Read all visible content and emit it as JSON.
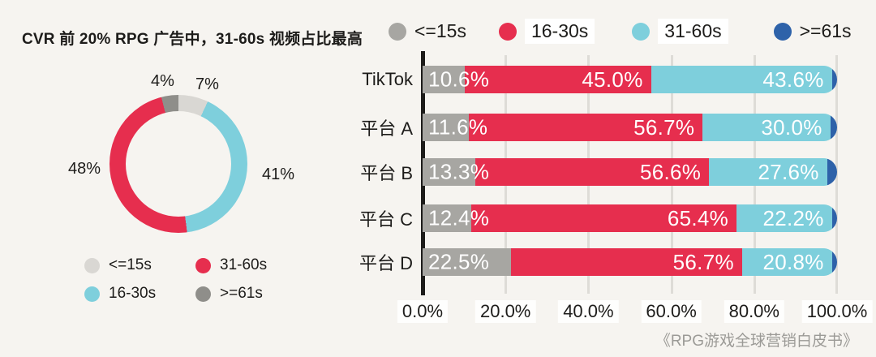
{
  "ui": {
    "title": "CVR 前 20% RPG 广告中，31-60s 视频占比最高",
    "donut_callouts": {
      "ge61": "4%",
      "le15": "7%",
      "s31_60": "48%",
      "s16_30": "41%"
    },
    "donut_legend": [
      "<=15s",
      "31-60s",
      "16-30s",
      ">=61s"
    ],
    "bar_legend": [
      "<=15s",
      "16-30s",
      "31-60s",
      ">=61s"
    ],
    "bar_rows": [
      {
        "label": "TikTok",
        "v0": "10.6%",
        "v1": "45.0%",
        "v2": "43.6%"
      },
      {
        "label": "平台 A",
        "v0": "11.6%",
        "v1": "56.7%",
        "v2": "30.0%"
      },
      {
        "label": "平台 B",
        "v0": "13.3%",
        "v1": "56.6%",
        "v2": "27.6%"
      },
      {
        "label": "平台 C",
        "v0": "12.4%",
        "v1": "65.4%",
        "v2": "22.2%"
      },
      {
        "label": "平台 D",
        "v0": "22.5%",
        "v1": "56.7%",
        "v2": "20.8%"
      }
    ],
    "x_ticks": [
      "0.0%",
      "20.0%",
      "40.0%",
      "60.0%",
      "80.0%",
      "100.0%"
    ],
    "caption": "《RPG游戏全球营销白皮书》"
  },
  "colors": {
    "background": "#f6f4f0",
    "le15_bar": "#a7a6a2",
    "s16_30": "#e62e4e",
    "s31_60": "#7ecfdc",
    "ge61_bar": "#2e62a9",
    "le15_donut": "#d9d7d3",
    "ge61_donut": "#8f8e8a",
    "text": "#1d1c1a",
    "gridline": "#dedcd7",
    "caption": "#9b9a96"
  },
  "chart_data": [
    {
      "type": "pie",
      "subtype": "donut",
      "title": "CVR 前 20% RPG 广告中，31-60s 视频占比最高",
      "labels": [
        "<=15s",
        "16-30s",
        "31-60s",
        ">=61s"
      ],
      "values": [
        7,
        41,
        48,
        4
      ],
      "data_labels": [
        "7%",
        "41%",
        "48%",
        "4%"
      ],
      "colors": [
        "#d9d7d3",
        "#7ecfdc",
        "#e62e4e",
        "#8f8e8a"
      ],
      "legend_order": [
        "<=15s",
        "31-60s",
        "16-30s",
        ">=61s"
      ],
      "legend_position": "bottom-left",
      "start_angle": "top",
      "direction": "clockwise"
    },
    {
      "type": "bar",
      "subtype": "horizontal-stacked",
      "categories": [
        "TikTok",
        "平台 A",
        "平台 B",
        "平台 C",
        "平台 D"
      ],
      "series": [
        {
          "name": "<=15s",
          "color": "#a7a6a2",
          "values": [
            10.6,
            11.6,
            13.3,
            12.4,
            22.5
          ]
        },
        {
          "name": "16-30s",
          "color": "#e62e4e",
          "values": [
            45.0,
            56.7,
            56.6,
            65.4,
            56.7
          ]
        },
        {
          "name": "31-60s",
          "color": "#7ecfdc",
          "values": [
            43.6,
            30.0,
            27.6,
            22.2,
            20.8
          ]
        },
        {
          "name": ">=61s",
          "color": "#2e62a9",
          "values": [
            0.8,
            1.7,
            2.5,
            0.0,
            0.0
          ]
        }
      ],
      "value_labels_shown_for": [
        "<=15s",
        "16-30s",
        "31-60s"
      ],
      "x_ticks": [
        "0.0%",
        "20.0%",
        "40.0%",
        "60.0%",
        "80.0%",
        "100.0%"
      ],
      "xlim": [
        0,
        100
      ],
      "legend_position": "top",
      "grid": true,
      "source_caption": "《RPG游戏全球营销白皮书》"
    }
  ]
}
